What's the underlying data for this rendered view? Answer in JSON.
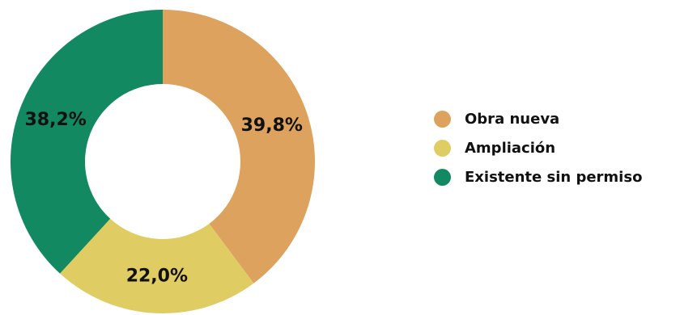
{
  "chart_data": {
    "type": "pie",
    "style": "donut",
    "title": "",
    "categories": [
      "Obra nueva",
      "Ampliación",
      "Existente sin permiso"
    ],
    "values": [
      39.8,
      22.0,
      38.2
    ],
    "value_labels": [
      "39,8%",
      "22,0%",
      "38,2%"
    ],
    "colors": [
      "#dda35e",
      "#dfcd64",
      "#138962"
    ],
    "legend_position": "right"
  }
}
